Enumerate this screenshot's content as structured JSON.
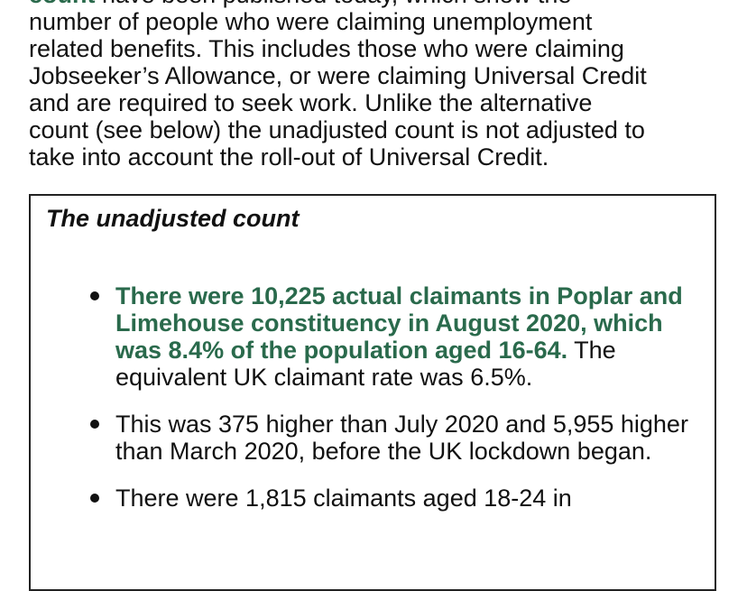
{
  "intro": {
    "lead": "count",
    "lines": [
      " have been published today, which show the",
      "number of people who were claiming unemployment",
      "related benefits. This includes those who were claiming",
      "Jobseeker’s Allowance, or were claiming Universal Credit",
      "and are required to seek work. Unlike the alternative",
      "count (see below) the unadjusted count is not adjusted to",
      "take into account the roll-out of Universal Credit."
    ]
  },
  "box": {
    "heading": "The unadjusted count",
    "bullets": [
      {
        "highlight": "There were 10,225 actual claimants in Poplar and Limehouse constituency in August 2020,  which was 8.4% of the population aged 16-64.",
        "text": " The equivalent UK claimant rate was 6.5%."
      },
      {
        "highlight": "",
        "text": "This was 375 higher than July 2020 and 5,955 higher than March 2020, before the UK lockdown began."
      },
      {
        "highlight": "",
        "text": "There were 1,815 claimants aged 18-24 in"
      }
    ]
  }
}
